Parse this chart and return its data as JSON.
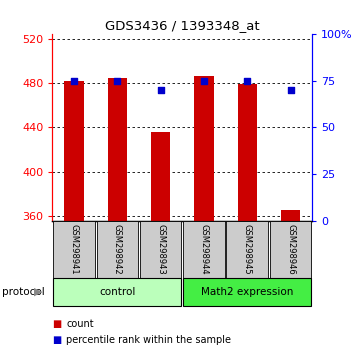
{
  "title": "GDS3436 / 1393348_at",
  "samples": [
    "GSM298941",
    "GSM298942",
    "GSM298943",
    "GSM298944",
    "GSM298945",
    "GSM298946"
  ],
  "bar_values": [
    482,
    485,
    436,
    487,
    479,
    365
  ],
  "percentile_values": [
    75,
    75,
    70,
    75,
    75,
    70
  ],
  "bar_color": "#cc0000",
  "dot_color": "#0000cc",
  "ylim_left": [
    355,
    525
  ],
  "ylim_right": [
    0,
    100
  ],
  "left_ticks": [
    360,
    400,
    440,
    480,
    520
  ],
  "right_ticks": [
    0,
    25,
    50,
    75,
    100
  ],
  "right_tick_labels": [
    "0",
    "25",
    "50",
    "75",
    "100%"
  ],
  "groups": [
    {
      "label": "control",
      "indices": [
        0,
        1,
        2
      ],
      "color": "#bbffbb"
    },
    {
      "label": "Math2 expression",
      "indices": [
        3,
        4,
        5
      ],
      "color": "#44ee44"
    }
  ],
  "protocol_label": "protocol",
  "legend_items": [
    {
      "label": "count",
      "color": "#cc0000"
    },
    {
      "label": "percentile rank within the sample",
      "color": "#0000cc"
    }
  ],
  "bar_width": 0.45,
  "bar_base": 355,
  "bg_plot": "#ffffff",
  "bg_labels": "#cccccc"
}
